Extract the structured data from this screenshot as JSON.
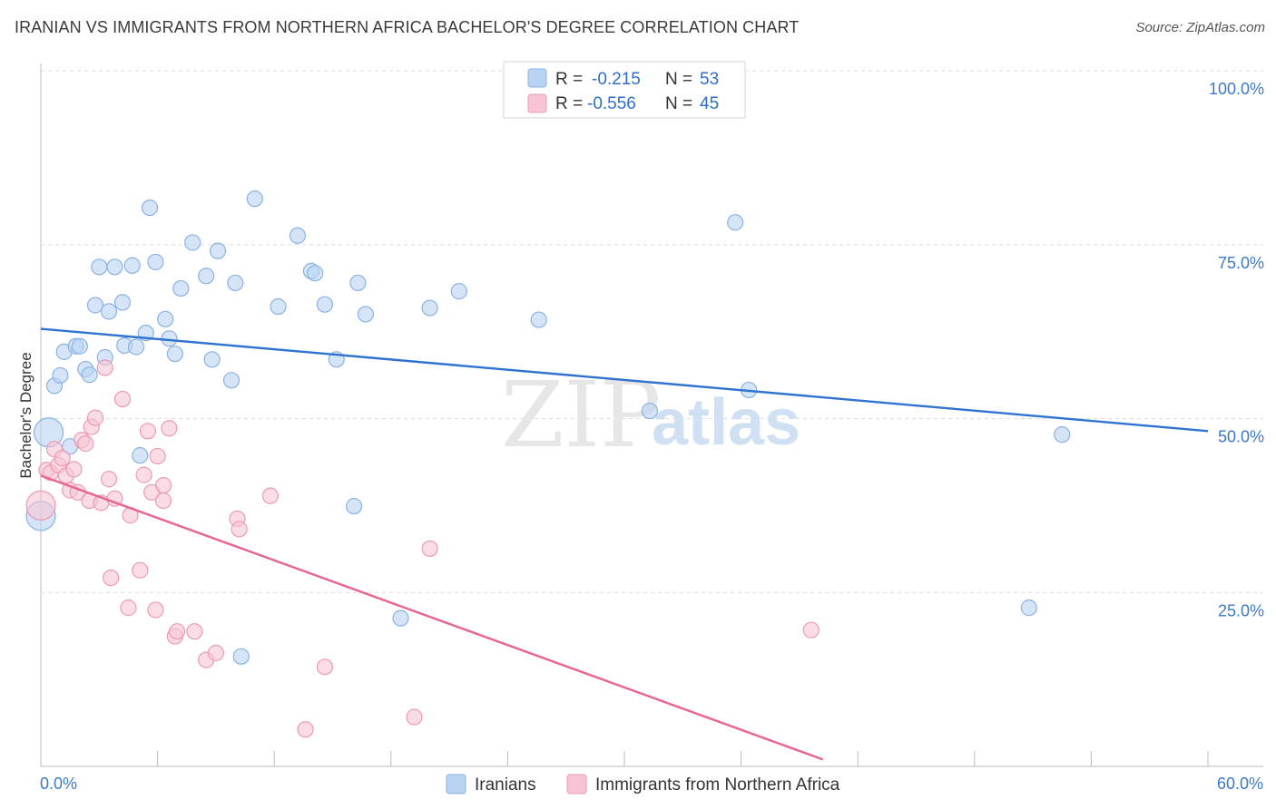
{
  "title": "IRANIAN VS IMMIGRANTS FROM NORTHERN AFRICA BACHELOR'S DEGREE CORRELATION CHART",
  "source": "Source: ZipAtlas.com",
  "watermark": {
    "part1": "ZIP",
    "part2": "atlas"
  },
  "colors": {
    "iranians_fill": "#b9d3f2",
    "iranians_stroke": "#8ab2e3",
    "iranians_line": "#2f73d0",
    "naf_fill": "#f7c4d4",
    "naf_stroke": "#ec9ab4",
    "naf_line": "#e86494",
    "tick_text": "#3b78c9",
    "grid": "#dddddd"
  },
  "legend": {
    "rows": [
      {
        "r_label": "R =",
        "r_value": "-0.215",
        "n_label": "N =",
        "n_value": "53"
      },
      {
        "r_label": "R =",
        "r_value": "-0.556",
        "n_label": "N =",
        "n_value": "45"
      }
    ]
  },
  "bottom_legend": [
    "Iranians",
    "Immigrants from Northern Africa"
  ],
  "chart_data": {
    "type": "scatter",
    "ylabel": "Bachelor's Degree",
    "xlim": [
      0,
      60
    ],
    "ylim": [
      0,
      100
    ],
    "x_tick_labels": {
      "left": "0.0%",
      "right": "60.0%"
    },
    "y_ticks": [
      {
        "value": 100,
        "label": "100.0%"
      },
      {
        "value": 75,
        "label": "75.0%"
      },
      {
        "value": 50,
        "label": "50.0%"
      },
      {
        "value": 25,
        "label": "25.0%"
      }
    ],
    "series": [
      {
        "name": "Iranians",
        "trend": {
          "x": [
            0,
            60
          ],
          "y": [
            62.9,
            48.2
          ]
        },
        "points": [
          {
            "x": 0.4,
            "y": 48.0,
            "big": true
          },
          {
            "x": 0.0,
            "y": 36.0,
            "big": true
          },
          {
            "x": 0.7,
            "y": 54.7
          },
          {
            "x": 1.0,
            "y": 56.2
          },
          {
            "x": 1.2,
            "y": 59.6
          },
          {
            "x": 1.5,
            "y": 46.0
          },
          {
            "x": 1.8,
            "y": 60.4
          },
          {
            "x": 2.0,
            "y": 60.4
          },
          {
            "x": 2.3,
            "y": 57.1
          },
          {
            "x": 2.5,
            "y": 56.3
          },
          {
            "x": 2.8,
            "y": 66.3
          },
          {
            "x": 3.0,
            "y": 71.8
          },
          {
            "x": 3.3,
            "y": 58.8
          },
          {
            "x": 3.5,
            "y": 65.4
          },
          {
            "x": 3.8,
            "y": 71.8
          },
          {
            "x": 4.2,
            "y": 66.7
          },
          {
            "x": 4.3,
            "y": 60.5
          },
          {
            "x": 4.7,
            "y": 72.0
          },
          {
            "x": 4.9,
            "y": 60.3
          },
          {
            "x": 5.1,
            "y": 44.7
          },
          {
            "x": 5.4,
            "y": 62.3
          },
          {
            "x": 5.6,
            "y": 80.3
          },
          {
            "x": 5.9,
            "y": 72.5
          },
          {
            "x": 6.4,
            "y": 64.3
          },
          {
            "x": 6.6,
            "y": 61.5
          },
          {
            "x": 6.9,
            "y": 59.3
          },
          {
            "x": 7.2,
            "y": 68.7
          },
          {
            "x": 7.8,
            "y": 75.3
          },
          {
            "x": 8.5,
            "y": 70.5
          },
          {
            "x": 8.8,
            "y": 58.5
          },
          {
            "x": 9.1,
            "y": 74.1
          },
          {
            "x": 9.8,
            "y": 55.5
          },
          {
            "x": 10.0,
            "y": 69.5
          },
          {
            "x": 10.3,
            "y": 15.8
          },
          {
            "x": 11.0,
            "y": 81.6
          },
          {
            "x": 12.2,
            "y": 66.1
          },
          {
            "x": 13.2,
            "y": 76.3
          },
          {
            "x": 13.9,
            "y": 71.2
          },
          {
            "x": 14.1,
            "y": 70.9
          },
          {
            "x": 14.6,
            "y": 66.4
          },
          {
            "x": 15.2,
            "y": 58.5
          },
          {
            "x": 16.1,
            "y": 37.4
          },
          {
            "x": 16.3,
            "y": 69.5
          },
          {
            "x": 16.7,
            "y": 65.0
          },
          {
            "x": 18.5,
            "y": 21.3
          },
          {
            "x": 20.0,
            "y": 65.9
          },
          {
            "x": 21.5,
            "y": 68.3
          },
          {
            "x": 25.6,
            "y": 64.2
          },
          {
            "x": 31.3,
            "y": 51.1
          },
          {
            "x": 36.4,
            "y": 54.1
          },
          {
            "x": 35.7,
            "y": 78.2
          },
          {
            "x": 52.5,
            "y": 47.7
          },
          {
            "x": 50.8,
            "y": 22.8
          }
        ]
      },
      {
        "name": "Immigrants from Northern Africa",
        "trend": {
          "x": [
            0,
            40.2
          ],
          "y": [
            41.8,
            1.0
          ]
        },
        "points": [
          {
            "x": 0.0,
            "y": 37.5,
            "big": true
          },
          {
            "x": 0.3,
            "y": 42.6
          },
          {
            "x": 0.5,
            "y": 42.2
          },
          {
            "x": 0.7,
            "y": 45.6
          },
          {
            "x": 0.9,
            "y": 43.3
          },
          {
            "x": 1.1,
            "y": 44.3
          },
          {
            "x": 1.3,
            "y": 41.8
          },
          {
            "x": 1.5,
            "y": 39.7
          },
          {
            "x": 1.7,
            "y": 42.7
          },
          {
            "x": 1.9,
            "y": 39.4
          },
          {
            "x": 2.1,
            "y": 46.9
          },
          {
            "x": 2.3,
            "y": 46.4
          },
          {
            "x": 2.5,
            "y": 38.2
          },
          {
            "x": 2.6,
            "y": 48.8
          },
          {
            "x": 2.8,
            "y": 50.1
          },
          {
            "x": 3.1,
            "y": 37.9
          },
          {
            "x": 3.3,
            "y": 57.3
          },
          {
            "x": 3.5,
            "y": 41.3
          },
          {
            "x": 3.6,
            "y": 27.1
          },
          {
            "x": 3.8,
            "y": 38.5
          },
          {
            "x": 4.2,
            "y": 52.8
          },
          {
            "x": 4.5,
            "y": 22.8
          },
          {
            "x": 4.6,
            "y": 36.1
          },
          {
            "x": 5.1,
            "y": 28.2
          },
          {
            "x": 5.3,
            "y": 41.9
          },
          {
            "x": 5.5,
            "y": 48.2
          },
          {
            "x": 5.7,
            "y": 39.4
          },
          {
            "x": 5.9,
            "y": 22.5
          },
          {
            "x": 6.0,
            "y": 44.6
          },
          {
            "x": 6.3,
            "y": 38.2
          },
          {
            "x": 6.3,
            "y": 40.4
          },
          {
            "x": 6.6,
            "y": 48.6
          },
          {
            "x": 6.9,
            "y": 18.7
          },
          {
            "x": 7.0,
            "y": 19.4
          },
          {
            "x": 7.9,
            "y": 19.4
          },
          {
            "x": 8.5,
            "y": 15.3
          },
          {
            "x": 9.0,
            "y": 16.3
          },
          {
            "x": 10.1,
            "y": 35.6
          },
          {
            "x": 10.2,
            "y": 34.1
          },
          {
            "x": 11.8,
            "y": 38.9
          },
          {
            "x": 13.6,
            "y": 5.3
          },
          {
            "x": 14.6,
            "y": 14.3
          },
          {
            "x": 19.2,
            "y": 7.1
          },
          {
            "x": 20.0,
            "y": 31.3
          },
          {
            "x": 39.6,
            "y": 19.6
          }
        ]
      }
    ]
  }
}
